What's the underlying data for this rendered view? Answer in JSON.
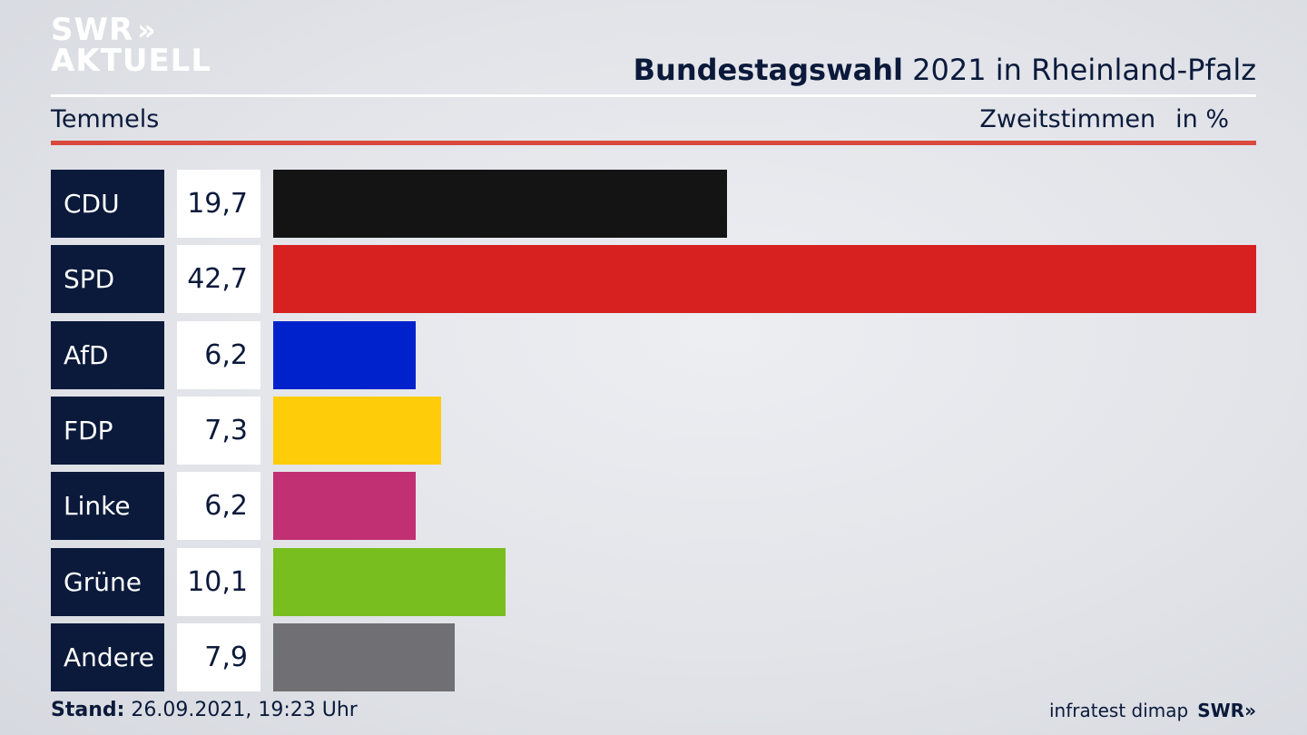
{
  "brand": {
    "logo_line1": "SWR",
    "logo_chevrons": "»",
    "logo_line2": "AKTUELL"
  },
  "header": {
    "title_bold": "Bundestagswahl",
    "title_rest": " 2021 in Rheinland-Pfalz",
    "location": "Temmels",
    "measure": "Zweitstimmen",
    "unit": "in %"
  },
  "chart_data": {
    "type": "bar",
    "orientation": "horizontal",
    "categories": [
      "CDU",
      "SPD",
      "AfD",
      "FDP",
      "Linke",
      "Grüne",
      "Andere"
    ],
    "values": [
      19.7,
      42.7,
      6.2,
      7.3,
      6.2,
      10.1,
      7.9
    ],
    "value_labels": [
      "19,7",
      "42,7",
      "6,2",
      "7,3",
      "6,2",
      "10,1",
      "7,9"
    ],
    "colors": [
      "#141414",
      "#d72020",
      "#0022cc",
      "#ffcc0a",
      "#c03072",
      "#78be1e",
      "#707074"
    ],
    "xlim": [
      0,
      42.7
    ]
  },
  "footer": {
    "stand_label": "Stand:",
    "stand_value": " 26.09.2021, 19:23 Uhr",
    "source": "infratest dimap",
    "source_brand": "SWR»"
  }
}
